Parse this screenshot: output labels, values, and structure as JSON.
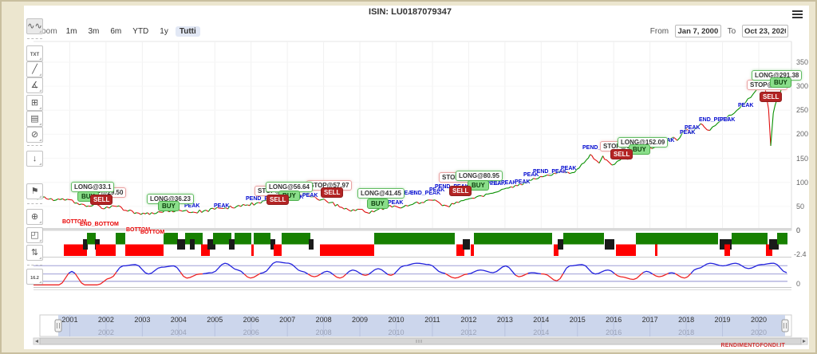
{
  "header": {
    "title": "ISIN: LU0187079347"
  },
  "menu": {
    "icon": "hamburger-icon"
  },
  "zoom_bar": {
    "label": "Zoom",
    "buttons": [
      "1m",
      "3m",
      "6m",
      "YTD",
      "1y",
      "Tutti"
    ],
    "active": "Tutti"
  },
  "date_range": {
    "from_label": "From",
    "from_value": "Jan 7, 2000",
    "to_label": "To",
    "to_value": "Oct 23, 2020"
  },
  "toolbar": {
    "tools": [
      {
        "name": "indicators-icon",
        "glyph": "∿∿",
        "cls": "first"
      },
      {
        "name": "text-annotation-icon",
        "glyph": "TXT",
        "cls": "tool-txt"
      },
      {
        "name": "trend-line-icon",
        "glyph": "╱",
        "cls": ""
      },
      {
        "name": "angle-measure-icon",
        "glyph": "∡",
        "cls": ""
      },
      {
        "name": "crosshair-icon",
        "glyph": "⊞",
        "cls": ""
      },
      {
        "name": "horizontal-lines-icon",
        "glyph": "▤",
        "cls": ""
      },
      {
        "name": "hide-drawings-icon",
        "glyph": "⊘",
        "cls": ""
      },
      {
        "name": "numeric-marker-icon",
        "glyph": "↓",
        "cls": ""
      },
      {
        "name": "flag-icon",
        "glyph": "⚑",
        "cls": ""
      },
      {
        "name": "zoom-in-icon",
        "glyph": "⊕",
        "cls": ""
      },
      {
        "name": "fullscreen-icon",
        "glyph": "◰",
        "cls": ""
      },
      {
        "name": "settings-sliders-icon",
        "glyph": "⇅",
        "cls": ""
      },
      {
        "name": "price-tag-icon",
        "glyph": "16.2",
        "cls": "tool-tag"
      }
    ],
    "tool_y": [
      11,
      45,
      65,
      85,
      107,
      127,
      147,
      177,
      218,
      250,
      273,
      295,
      325
    ],
    "separator_y": [
      36,
      170,
      243,
      320
    ]
  },
  "chart_data": {
    "type": "line",
    "title": "ISIN: LU0187079347",
    "x_range": [
      "Jan 7, 2000",
      "Oct 23, 2020"
    ],
    "ylim": [
      0,
      350
    ],
    "y_ticks": [
      350,
      300,
      250,
      200,
      150,
      100,
      50,
      0
    ],
    "grid": true,
    "series": [
      {
        "name": "price",
        "points": [
          [
            0.1,
            65
          ],
          [
            0.3,
            70
          ],
          [
            0.55,
            62
          ],
          [
            0.8,
            66
          ],
          [
            1.0,
            64
          ],
          [
            1.2,
            57
          ],
          [
            1.45,
            50
          ],
          [
            1.75,
            54
          ],
          [
            1.95,
            45
          ],
          [
            2.3,
            50
          ],
          [
            2.6,
            40
          ],
          [
            2.9,
            36
          ],
          [
            3.2,
            33
          ],
          [
            3.5,
            38
          ],
          [
            3.8,
            41
          ],
          [
            4.1,
            40
          ],
          [
            4.4,
            38
          ],
          [
            4.7,
            41
          ],
          [
            5.0,
            44
          ],
          [
            5.3,
            47
          ],
          [
            5.6,
            50
          ],
          [
            5.9,
            53
          ],
          [
            6.2,
            58
          ],
          [
            6.45,
            64
          ],
          [
            6.7,
            62
          ],
          [
            6.95,
            68
          ],
          [
            7.2,
            72
          ],
          [
            7.45,
            74
          ],
          [
            7.7,
            70
          ],
          [
            7.95,
            64
          ],
          [
            8.2,
            58
          ],
          [
            8.5,
            48
          ],
          [
            8.75,
            40
          ],
          [
            9.0,
            44
          ],
          [
            9.2,
            37
          ],
          [
            9.45,
            42
          ],
          [
            9.7,
            47
          ],
          [
            9.95,
            51
          ],
          [
            10.2,
            49
          ],
          [
            10.45,
            54
          ],
          [
            10.7,
            58
          ],
          [
            10.95,
            63
          ],
          [
            11.2,
            57
          ],
          [
            11.4,
            51
          ],
          [
            11.6,
            55
          ],
          [
            11.85,
            62
          ],
          [
            12.1,
            67
          ],
          [
            12.35,
            72
          ],
          [
            12.6,
            77
          ],
          [
            12.85,
            82
          ],
          [
            13.1,
            88
          ],
          [
            13.35,
            93
          ],
          [
            13.6,
            99
          ],
          [
            13.85,
            107
          ],
          [
            14.1,
            113
          ],
          [
            14.35,
            119
          ],
          [
            14.6,
            123
          ],
          [
            14.85,
            120
          ],
          [
            15.05,
            130
          ],
          [
            15.25,
            147
          ],
          [
            15.35,
            158
          ],
          [
            15.45,
            149
          ],
          [
            15.6,
            140
          ],
          [
            15.7,
            155
          ],
          [
            15.8,
            147
          ],
          [
            15.95,
            136
          ],
          [
            16.1,
            144
          ],
          [
            16.25,
            153
          ],
          [
            16.4,
            148
          ],
          [
            16.55,
            162
          ],
          [
            16.75,
            168
          ],
          [
            17.0,
            172
          ],
          [
            17.25,
            178
          ],
          [
            17.5,
            186
          ],
          [
            17.65,
            194
          ],
          [
            17.75,
            187
          ],
          [
            17.9,
            204
          ],
          [
            18.0,
            212
          ],
          [
            18.1,
            202
          ],
          [
            18.25,
            212
          ],
          [
            18.4,
            222
          ],
          [
            18.5,
            215
          ],
          [
            18.65,
            208
          ],
          [
            18.8,
            218
          ],
          [
            18.95,
            228
          ],
          [
            19.1,
            233
          ],
          [
            19.25,
            240
          ],
          [
            19.4,
            250
          ],
          [
            19.55,
            262
          ],
          [
            19.7,
            274
          ],
          [
            19.85,
            284
          ],
          [
            20.0,
            298
          ],
          [
            20.1,
            305
          ],
          [
            20.18,
            293
          ],
          [
            20.27,
            252
          ],
          [
            20.33,
            176
          ],
          [
            20.4,
            244
          ],
          [
            20.5,
            272
          ],
          [
            20.6,
            288
          ],
          [
            20.7,
            312
          ],
          [
            20.78,
            324
          ]
        ]
      }
    ],
    "colors": {
      "up": "#089000",
      "down": "#e01010"
    },
    "annotations": {
      "long_boxes": [
        {
          "x": 87,
          "y": 226,
          "text": "LONG@33.1"
        },
        {
          "x": 182,
          "y": 241,
          "text": "LONG@36.23"
        },
        {
          "x": 331,
          "y": 226,
          "text": "LONG@56.64"
        },
        {
          "x": 446,
          "y": 234,
          "text": "LONG@41.45"
        },
        {
          "x": 569,
          "y": 212,
          "text": "LONG@80.95"
        },
        {
          "x": 772,
          "y": 170,
          "text": "LONG@152.09"
        },
        {
          "x": 940,
          "y": 86,
          "text": "LONG@291.38"
        }
      ],
      "stop_boxes": [
        {
          "x": 99,
          "y": 233,
          "text": "STOP@29.50"
        },
        {
          "x": 317,
          "y": 231,
          "text": "STOP@49.11"
        },
        {
          "x": 382,
          "y": 224,
          "text": "STOP@57.97"
        },
        {
          "x": 548,
          "y": 214,
          "text": "STOP@69.89"
        },
        {
          "x": 750,
          "y": 175,
          "text": "STOP@140.54"
        },
        {
          "x": 934,
          "y": 98,
          "text": "STOP@259"
        }
      ],
      "buy_badges": [
        {
          "x": 95,
          "y": 238,
          "text": "BUY"
        },
        {
          "x": 196,
          "y": 250,
          "text": "BUY"
        },
        {
          "x": 347,
          "y": 237,
          "text": "BUY"
        },
        {
          "x": 458,
          "y": 247,
          "text": "BUY"
        },
        {
          "x": 584,
          "y": 224,
          "text": "BUY"
        },
        {
          "x": 786,
          "y": 179,
          "text": "BUY"
        },
        {
          "x": 963,
          "y": 95,
          "text": "BUY"
        }
      ],
      "sell_badges": [
        {
          "x": 111,
          "y": 242,
          "text": "SELL"
        },
        {
          "x": 332,
          "y": 242,
          "text": "SELL"
        },
        {
          "x": 400,
          "y": 233,
          "text": "SELL"
        },
        {
          "x": 561,
          "y": 231,
          "text": "SELL"
        },
        {
          "x": 763,
          "y": 185,
          "text": "SELL"
        },
        {
          "x": 950,
          "y": 113,
          "text": "SELL"
        }
      ],
      "peak_labels": [
        {
          "x": 229,
          "y": 253,
          "text": "PEAK"
        },
        {
          "x": 266,
          "y": 253,
          "text": "PEAK"
        },
        {
          "x": 306,
          "y": 244,
          "text": "PEND_PEAK"
        },
        {
          "x": 359,
          "y": 242,
          "text": "PEAK"
        },
        {
          "x": 377,
          "y": 240,
          "text": "PEAK"
        },
        {
          "x": 484,
          "y": 249,
          "text": "PEAK"
        },
        {
          "x": 500,
          "y": 237,
          "text": "PEAK"
        },
        {
          "x": 512,
          "y": 237,
          "text": "END_PEAK"
        },
        {
          "x": 536,
          "y": 233,
          "text": "PEAK"
        },
        {
          "x": 543,
          "y": 229,
          "text": "PEND_PEAK"
        },
        {
          "x": 589,
          "y": 225,
          "text": "END_PEAK"
        },
        {
          "x": 612,
          "y": 225,
          "text": "PEAK"
        },
        {
          "x": 626,
          "y": 224,
          "text": "PEAK"
        },
        {
          "x": 643,
          "y": 223,
          "text": "PEAK"
        },
        {
          "x": 654,
          "y": 214,
          "text": "PEAK"
        },
        {
          "x": 666,
          "y": 210,
          "text": "PEND_PEAK"
        },
        {
          "x": 701,
          "y": 206,
          "text": "PEAK"
        },
        {
          "x": 728,
          "y": 180,
          "text": "PEND_PEAK"
        },
        {
          "x": 824,
          "y": 171,
          "text": "PEAK"
        },
        {
          "x": 850,
          "y": 161,
          "text": "PEAK"
        },
        {
          "x": 856,
          "y": 155,
          "text": "PEAK"
        },
        {
          "x": 874,
          "y": 145,
          "text": "END_PEAK"
        },
        {
          "x": 900,
          "y": 145,
          "text": "PEAK"
        },
        {
          "x": 923,
          "y": 127,
          "text": "PEAK"
        },
        {
          "x": 948,
          "y": 106,
          "text": "PEAK"
        }
      ],
      "bottom_labels": [
        {
          "x": 76,
          "y": 273,
          "text": "BOTTOM"
        },
        {
          "x": 98,
          "y": 276,
          "text": "END_BOTTOM"
        },
        {
          "x": 156,
          "y": 283,
          "text": "BOTTOM"
        },
        {
          "x": 174,
          "y": 286,
          "text": "BOTTOM"
        }
      ]
    },
    "regime_bar": {
      "ylim": [
        -2.4,
        0
      ],
      "tick_top": "0",
      "tick_bottom": "-2.4",
      "colors": {
        "bull": "#178000",
        "bear": "#ff0000",
        "neutral": "#1a1a1a"
      },
      "segments": [
        [
          78,
          107,
          "r"
        ],
        [
          102,
          108,
          "k"
        ],
        [
          107,
          118,
          "g"
        ],
        [
          117,
          123,
          "k"
        ],
        [
          118,
          143,
          "r"
        ],
        [
          143,
          155,
          "g"
        ],
        [
          155,
          203,
          "r"
        ],
        [
          203,
          221,
          "g"
        ],
        [
          220,
          230,
          "k"
        ],
        [
          230,
          252,
          "g"
        ],
        [
          236,
          242,
          "k"
        ],
        [
          250,
          261,
          "r"
        ],
        [
          258,
          268,
          "k"
        ],
        [
          265,
          288,
          "g"
        ],
        [
          285,
          292,
          "k"
        ],
        [
          292,
          313,
          "g"
        ],
        [
          313,
          316,
          "r"
        ],
        [
          316,
          337,
          "g"
        ],
        [
          337,
          343,
          "k"
        ],
        [
          341,
          351,
          "r"
        ],
        [
          351,
          387,
          "g"
        ],
        [
          385,
          391,
          "k"
        ],
        [
          399,
          467,
          "r"
        ],
        [
          467,
          568,
          "g"
        ],
        [
          570,
          580,
          "r"
        ],
        [
          578,
          587,
          "k"
        ],
        [
          588,
          592,
          "r"
        ],
        [
          592,
          690,
          "g"
        ],
        [
          692,
          698,
          "r"
        ],
        [
          697,
          704,
          "k"
        ],
        [
          704,
          755,
          "g"
        ],
        [
          756,
          768,
          "k"
        ],
        [
          770,
          795,
          "r"
        ],
        [
          795,
          898,
          "g"
        ],
        [
          819,
          822,
          "r"
        ],
        [
          900,
          915,
          "k"
        ],
        [
          906,
          913,
          "r"
        ],
        [
          915,
          960,
          "g"
        ],
        [
          958,
          966,
          "r"
        ],
        [
          962,
          974,
          "k"
        ],
        [
          972,
          985,
          "g"
        ]
      ]
    },
    "oscillator": {
      "tick_bottom": "0",
      "threshold": 0.46,
      "gridline_levels": [
        0.76,
        0.45,
        0.18
      ],
      "colors": {
        "above": "#2222dd",
        "below": "#ee2222",
        "grid": "#8f8fd0"
      },
      "samples": [
        0.05,
        0.05,
        0.05,
        0.55,
        0.05,
        0.05,
        0.3,
        0.75,
        0.8,
        0.45,
        0.7,
        0.75,
        0.3,
        0.45,
        0.5,
        0.85,
        0.6,
        0.3,
        0.5,
        0.9,
        0.85,
        0.55,
        0.35,
        0.55,
        0.3,
        0.6,
        0.4,
        0.65,
        0.4,
        0.75,
        0.85,
        0.8,
        0.5,
        0.3,
        0.45,
        0.6,
        0.5,
        0.75,
        0.35,
        0.5,
        0.45,
        0.2,
        0.75,
        0.8,
        0.45,
        0.6,
        0.35,
        0.25,
        0.55,
        0.35,
        0.5,
        0.3,
        0.65,
        0.85,
        0.75,
        0.85,
        0.65,
        0.8,
        0.85,
        0.5
      ]
    },
    "navigator": {
      "years_major": [
        "2001",
        "2002",
        "2003",
        "2004",
        "2005",
        "2006",
        "2007",
        "2008",
        "2009",
        "2010",
        "2011",
        "2012",
        "2013",
        "2014",
        "2015",
        "2016",
        "2017",
        "2018",
        "2019",
        "2020"
      ],
      "years_minor": [
        "2002",
        "2004",
        "2006",
        "2008",
        "2010",
        "2012",
        "2014",
        "2016",
        "2018",
        "2020"
      ]
    }
  },
  "footer": {
    "watermark": "RENDIMENTOFONDI.IT"
  }
}
